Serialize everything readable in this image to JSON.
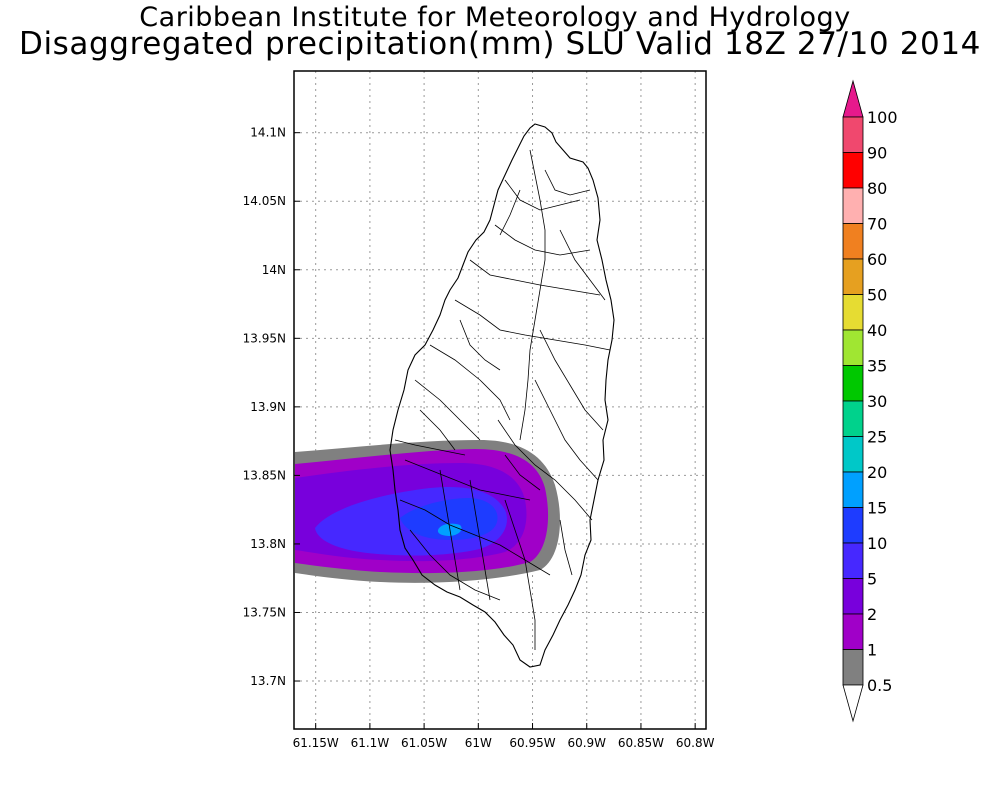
{
  "title": {
    "line1": "Caribbean Institute for Meteorology and Hydrology",
    "line2": "Disaggregated precipitation(mm) SLU Valid 18Z 27/10 2014"
  },
  "map": {
    "region": "Saint Lucia",
    "lon_range": [
      -61.17,
      -60.79
    ],
    "lat_range": [
      13.665,
      14.145
    ],
    "lon_ticks": [
      {
        "value": -61.15,
        "label": "61.15W"
      },
      {
        "value": -61.1,
        "label": "61.1W"
      },
      {
        "value": -61.05,
        "label": "61.05W"
      },
      {
        "value": -61.0,
        "label": "61W"
      },
      {
        "value": -60.95,
        "label": "60.95W"
      },
      {
        "value": -60.9,
        "label": "60.9W"
      },
      {
        "value": -60.85,
        "label": "60.85W"
      },
      {
        "value": -60.8,
        "label": "60.8W"
      }
    ],
    "lat_ticks": [
      {
        "value": 14.1,
        "label": "14.1N"
      },
      {
        "value": 14.05,
        "label": "14.05N"
      },
      {
        "value": 14.0,
        "label": "14N"
      },
      {
        "value": 13.95,
        "label": "13.95N"
      },
      {
        "value": 13.9,
        "label": "13.9N"
      },
      {
        "value": 13.85,
        "label": "13.85N"
      },
      {
        "value": 13.8,
        "label": "13.8N"
      },
      {
        "value": 13.75,
        "label": "13.75N"
      },
      {
        "value": 13.7,
        "label": "13.7N"
      }
    ],
    "grid": "dotted"
  },
  "colorbar": {
    "levels": [
      "100",
      "90",
      "80",
      "70",
      "60",
      "50",
      "40",
      "35",
      "30",
      "25",
      "20",
      "15",
      "10",
      "5",
      "2",
      "1",
      "0.5"
    ],
    "colors": [
      "#f0486e",
      "#ff0000",
      "#ffb0b0",
      "#f08020",
      "#e6a020",
      "#e6dc32",
      "#a0e632",
      "#00c800",
      "#00d28c",
      "#00c8c8",
      "#00a0ff",
      "#1e3cff",
      "#4628ff",
      "#7800dc",
      "#a000c8",
      "#808080"
    ],
    "top_arrow_color": "#e6198c",
    "bottom_arrow_color": "#ffffff"
  }
}
